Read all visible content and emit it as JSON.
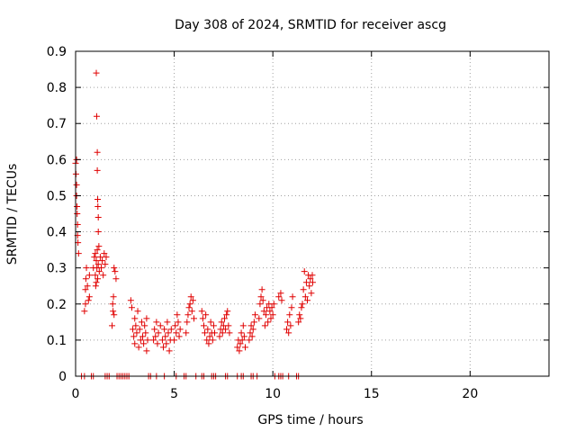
{
  "chart_data": {
    "type": "scatter",
    "title": "Day 308 of 2024, SRMTID for receiver ascg",
    "xlabel": "GPS time / hours",
    "ylabel": "SRMTID / TECUs",
    "xlim": [
      0,
      24
    ],
    "ylim": [
      0,
      0.9
    ],
    "xticks": [
      "0",
      "5",
      "10",
      "15",
      "20"
    ],
    "yticks": [
      "0",
      "0.1",
      "0.2",
      "0.3",
      "0.4",
      "0.5",
      "0.6",
      "0.7",
      "0.8",
      "0.9"
    ],
    "grid": true,
    "marker": "+",
    "color": "#e00000",
    "series": [
      {
        "name": "ascg",
        "points": [
          [
            0.0,
            0.59
          ],
          [
            0.02,
            0.56
          ],
          [
            0.05,
            0.53
          ],
          [
            0.05,
            0.5
          ],
          [
            0.07,
            0.47
          ],
          [
            0.08,
            0.45
          ],
          [
            0.1,
            0.42
          ],
          [
            0.1,
            0.39
          ],
          [
            0.12,
            0.37
          ],
          [
            0.15,
            0.34
          ],
          [
            0.05,
            0.6
          ],
          [
            0.45,
            0.18
          ],
          [
            0.5,
            0.2
          ],
          [
            0.5,
            0.24
          ],
          [
            0.52,
            0.27
          ],
          [
            0.55,
            0.3
          ],
          [
            0.6,
            0.25
          ],
          [
            0.65,
            0.21
          ],
          [
            0.7,
            0.22
          ],
          [
            0.7,
            0.28
          ],
          [
            0.9,
            0.3
          ],
          [
            0.95,
            0.33
          ],
          [
            1.0,
            0.34
          ],
          [
            1.0,
            0.28
          ],
          [
            1.02,
            0.25
          ],
          [
            1.05,
            0.32
          ],
          [
            1.05,
            0.26
          ],
          [
            1.08,
            0.3
          ],
          [
            1.1,
            0.35
          ],
          [
            1.12,
            0.27
          ],
          [
            1.15,
            0.31
          ],
          [
            1.18,
            0.36
          ],
          [
            1.2,
            0.29
          ],
          [
            1.25,
            0.33
          ],
          [
            1.3,
            0.3
          ],
          [
            1.35,
            0.32
          ],
          [
            1.4,
            0.28
          ],
          [
            1.45,
            0.34
          ],
          [
            1.5,
            0.31
          ],
          [
            1.55,
            0.33
          ],
          [
            1.05,
            0.84
          ],
          [
            1.07,
            0.72
          ],
          [
            1.1,
            0.62
          ],
          [
            1.1,
            0.57
          ],
          [
            1.12,
            0.49
          ],
          [
            1.13,
            0.47
          ],
          [
            1.15,
            0.44
          ],
          [
            1.15,
            0.4
          ],
          [
            1.85,
            0.14
          ],
          [
            1.88,
            0.2
          ],
          [
            1.9,
            0.18
          ],
          [
            1.92,
            0.22
          ],
          [
            1.95,
            0.17
          ],
          [
            1.95,
            0.3
          ],
          [
            2.0,
            0.29
          ],
          [
            2.05,
            0.27
          ],
          [
            2.8,
            0.21
          ],
          [
            2.85,
            0.19
          ],
          [
            2.9,
            0.13
          ],
          [
            2.95,
            0.11
          ],
          [
            3.0,
            0.09
          ],
          [
            3.0,
            0.16
          ],
          [
            3.05,
            0.14
          ],
          [
            3.1,
            0.12
          ],
          [
            3.15,
            0.18
          ],
          [
            3.2,
            0.08
          ],
          [
            3.25,
            0.13
          ],
          [
            3.3,
            0.1
          ],
          [
            3.35,
            0.15
          ],
          [
            3.4,
            0.11
          ],
          [
            3.45,
            0.09
          ],
          [
            3.5,
            0.14
          ],
          [
            3.55,
            0.12
          ],
          [
            3.6,
            0.07
          ],
          [
            3.6,
            0.16
          ],
          [
            3.65,
            0.1
          ],
          [
            3.95,
            0.1
          ],
          [
            4.0,
            0.13
          ],
          [
            4.05,
            0.11
          ],
          [
            4.1,
            0.15
          ],
          [
            4.15,
            0.09
          ],
          [
            4.2,
            0.12
          ],
          [
            4.3,
            0.14
          ],
          [
            4.4,
            0.1
          ],
          [
            4.45,
            0.08
          ],
          [
            4.5,
            0.13
          ],
          [
            4.55,
            0.11
          ],
          [
            4.6,
            0.09
          ],
          [
            4.65,
            0.15
          ],
          [
            4.7,
            0.12
          ],
          [
            4.75,
            0.07
          ],
          [
            4.8,
            0.1
          ],
          [
            4.85,
            0.13
          ],
          [
            5.0,
            0.1
          ],
          [
            5.05,
            0.14
          ],
          [
            5.1,
            0.12
          ],
          [
            5.15,
            0.17
          ],
          [
            5.2,
            0.15
          ],
          [
            5.25,
            0.11
          ],
          [
            5.3,
            0.13
          ],
          [
            5.6,
            0.12
          ],
          [
            5.65,
            0.15
          ],
          [
            5.7,
            0.17
          ],
          [
            5.75,
            0.19
          ],
          [
            5.8,
            0.2
          ],
          [
            5.85,
            0.22
          ],
          [
            5.9,
            0.18
          ],
          [
            5.95,
            0.21
          ],
          [
            6.0,
            0.16
          ],
          [
            6.4,
            0.18
          ],
          [
            6.45,
            0.16
          ],
          [
            6.5,
            0.14
          ],
          [
            6.55,
            0.12
          ],
          [
            6.6,
            0.17
          ],
          [
            6.65,
            0.1
          ],
          [
            6.7,
            0.13
          ],
          [
            6.75,
            0.09
          ],
          [
            6.8,
            0.11
          ],
          [
            6.85,
            0.15
          ],
          [
            6.9,
            0.12
          ],
          [
            6.95,
            0.1
          ],
          [
            7.0,
            0.14
          ],
          [
            7.05,
            0.12
          ],
          [
            7.3,
            0.11
          ],
          [
            7.35,
            0.13
          ],
          [
            7.4,
            0.15
          ],
          [
            7.45,
            0.12
          ],
          [
            7.5,
            0.14
          ],
          [
            7.55,
            0.16
          ],
          [
            7.6,
            0.13
          ],
          [
            7.65,
            0.17
          ],
          [
            7.7,
            0.18
          ],
          [
            7.75,
            0.14
          ],
          [
            7.8,
            0.12
          ],
          [
            8.2,
            0.08
          ],
          [
            8.25,
            0.1
          ],
          [
            8.3,
            0.07
          ],
          [
            8.35,
            0.09
          ],
          [
            8.4,
            0.12
          ],
          [
            8.45,
            0.1
          ],
          [
            8.5,
            0.14
          ],
          [
            8.55,
            0.11
          ],
          [
            8.6,
            0.08
          ],
          [
            8.8,
            0.1
          ],
          [
            8.85,
            0.12
          ],
          [
            8.9,
            0.14
          ],
          [
            8.95,
            0.11
          ],
          [
            9.0,
            0.13
          ],
          [
            9.05,
            0.15
          ],
          [
            9.1,
            0.17
          ],
          [
            9.3,
            0.16
          ],
          [
            9.35,
            0.2
          ],
          [
            9.4,
            0.22
          ],
          [
            9.45,
            0.24
          ],
          [
            9.5,
            0.21
          ],
          [
            9.55,
            0.18
          ],
          [
            9.6,
            0.14
          ],
          [
            9.65,
            0.17
          ],
          [
            9.7,
            0.19
          ],
          [
            9.75,
            0.15
          ],
          [
            9.8,
            0.2
          ],
          [
            9.85,
            0.18
          ],
          [
            9.9,
            0.16
          ],
          [
            9.95,
            0.19
          ],
          [
            10.0,
            0.17
          ],
          [
            10.05,
            0.2
          ],
          [
            10.3,
            0.22
          ],
          [
            10.4,
            0.23
          ],
          [
            10.45,
            0.21
          ],
          [
            10.7,
            0.13
          ],
          [
            10.75,
            0.15
          ],
          [
            10.8,
            0.12
          ],
          [
            10.85,
            0.17
          ],
          [
            10.9,
            0.14
          ],
          [
            10.95,
            0.19
          ],
          [
            11.0,
            0.22
          ],
          [
            11.3,
            0.15
          ],
          [
            11.35,
            0.17
          ],
          [
            11.4,
            0.16
          ],
          [
            11.45,
            0.19
          ],
          [
            11.5,
            0.2
          ],
          [
            11.55,
            0.24
          ],
          [
            11.6,
            0.29
          ],
          [
            11.65,
            0.22
          ],
          [
            11.7,
            0.26
          ],
          [
            11.75,
            0.21
          ],
          [
            11.8,
            0.28
          ],
          [
            11.85,
            0.25
          ],
          [
            11.9,
            0.27
          ],
          [
            11.95,
            0.23
          ],
          [
            12.0,
            0.28
          ],
          [
            12.02,
            0.26
          ]
        ]
      },
      {
        "name": "zero-level samples",
        "points": [
          [
            0.3,
            0
          ],
          [
            0.45,
            0
          ],
          [
            0.8,
            0
          ],
          [
            0.9,
            0
          ],
          [
            1.5,
            0
          ],
          [
            1.6,
            0
          ],
          [
            1.7,
            0
          ],
          [
            2.1,
            0
          ],
          [
            2.2,
            0
          ],
          [
            2.3,
            0
          ],
          [
            2.4,
            0
          ],
          [
            2.5,
            0
          ],
          [
            2.6,
            0
          ],
          [
            2.7,
            0
          ],
          [
            3.7,
            0
          ],
          [
            3.8,
            0
          ],
          [
            4.1,
            0
          ],
          [
            4.5,
            0
          ],
          [
            5.1,
            0
          ],
          [
            5.5,
            0
          ],
          [
            5.6,
            0
          ],
          [
            6.1,
            0
          ],
          [
            6.4,
            0
          ],
          [
            6.5,
            0
          ],
          [
            6.9,
            0
          ],
          [
            7.0,
            0
          ],
          [
            7.1,
            0
          ],
          [
            7.6,
            0
          ],
          [
            7.7,
            0
          ],
          [
            8.2,
            0
          ],
          [
            8.4,
            0
          ],
          [
            8.5,
            0
          ],
          [
            8.9,
            0
          ],
          [
            9.0,
            0
          ],
          [
            9.2,
            0
          ],
          [
            10.1,
            0
          ],
          [
            10.3,
            0
          ],
          [
            10.4,
            0
          ],
          [
            10.5,
            0
          ],
          [
            10.8,
            0
          ],
          [
            11.2,
            0
          ],
          [
            11.3,
            0
          ]
        ]
      }
    ]
  }
}
